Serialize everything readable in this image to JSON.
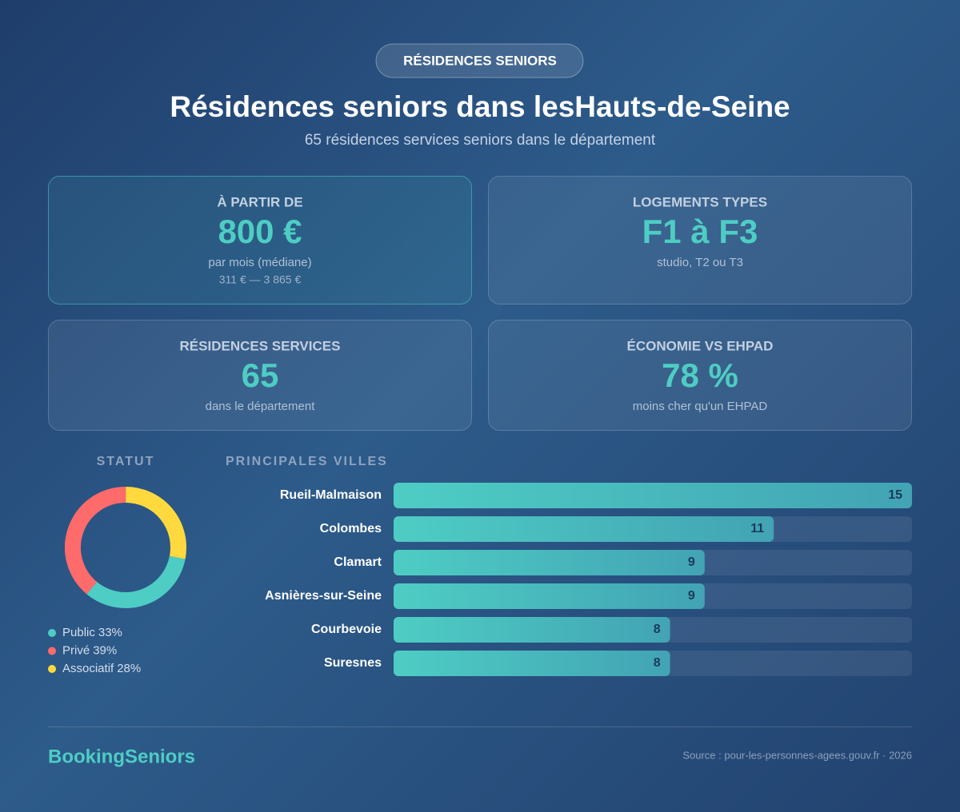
{
  "badge": "RÉSIDENCES SENIORS",
  "header": {
    "title": "Résidences seniors dans lesHauts-de-Seine",
    "subtitle": "65 résidences services seniors dans le département"
  },
  "cards": [
    {
      "label": "À PARTIR DE",
      "value": "800 €",
      "caption": "par mois (médiane)",
      "range": "311 € — 3 865 €"
    },
    {
      "label": "LOGEMENTS TYPES",
      "value": "F1 à F3",
      "caption": "studio, T2 ou T3"
    },
    {
      "label": "RÉSIDENCES SERVICES",
      "value": "65",
      "caption": "dans le département"
    },
    {
      "label": "ÉCONOMIE VS EHPAD",
      "value": "78 %",
      "caption": "moins cher qu'un EHPAD"
    }
  ],
  "chart_data": [
    {
      "type": "donut",
      "title": "STATUT",
      "categories": [
        "Public",
        "Privé",
        "Associatif"
      ],
      "values": [
        33,
        39,
        28
      ],
      "value_labels": [
        "33%",
        "39%",
        "28%"
      ],
      "colors": [
        "#4ecdc4",
        "#ff6b6b",
        "#ffd93d"
      ]
    },
    {
      "type": "hbar",
      "title": "PRINCIPALES VILLES",
      "categories": [
        "Rueil-Malmaison",
        "Colombes",
        "Clamart",
        "Asnières-sur-Seine",
        "Courbevoie",
        "Suresnes"
      ],
      "values": [
        15,
        11,
        9,
        9,
        8,
        8
      ],
      "color": "#4ecdc4",
      "xlim": [
        0,
        15
      ]
    }
  ],
  "footer": {
    "brand": "BookingSeniors",
    "source": "Source : pour-les-personnes-agees.gouv.fr · 2026"
  }
}
